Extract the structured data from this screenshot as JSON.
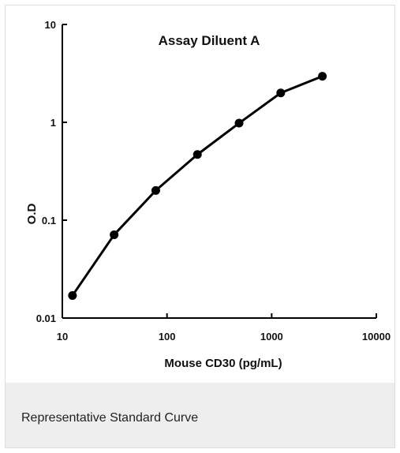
{
  "caption": "Representative Standard Curve",
  "chart_data": {
    "type": "line",
    "title": "Assay Diluent A",
    "xlabel": "Mouse CD30 (pg/mL)",
    "ylabel": "O.D",
    "xscale": "log",
    "yscale": "log",
    "xlim": [
      10,
      10000
    ],
    "ylim": [
      0.01,
      10
    ],
    "xticks": [
      "10",
      "100",
      "1000",
      "10000"
    ],
    "yticks": [
      "0.01",
      "0.1",
      "1",
      "10"
    ],
    "grid": false,
    "legend": "none",
    "series": [
      {
        "x": [
          12.5,
          31.25,
          78.1,
          195.3,
          488.3,
          1220.7,
          3051.8
        ],
        "y": [
          0.017,
          0.071,
          0.201,
          0.469,
          0.981,
          1.997,
          2.958
        ]
      }
    ],
    "colors": {
      "line": "#000000",
      "marker": "#000000"
    }
  }
}
